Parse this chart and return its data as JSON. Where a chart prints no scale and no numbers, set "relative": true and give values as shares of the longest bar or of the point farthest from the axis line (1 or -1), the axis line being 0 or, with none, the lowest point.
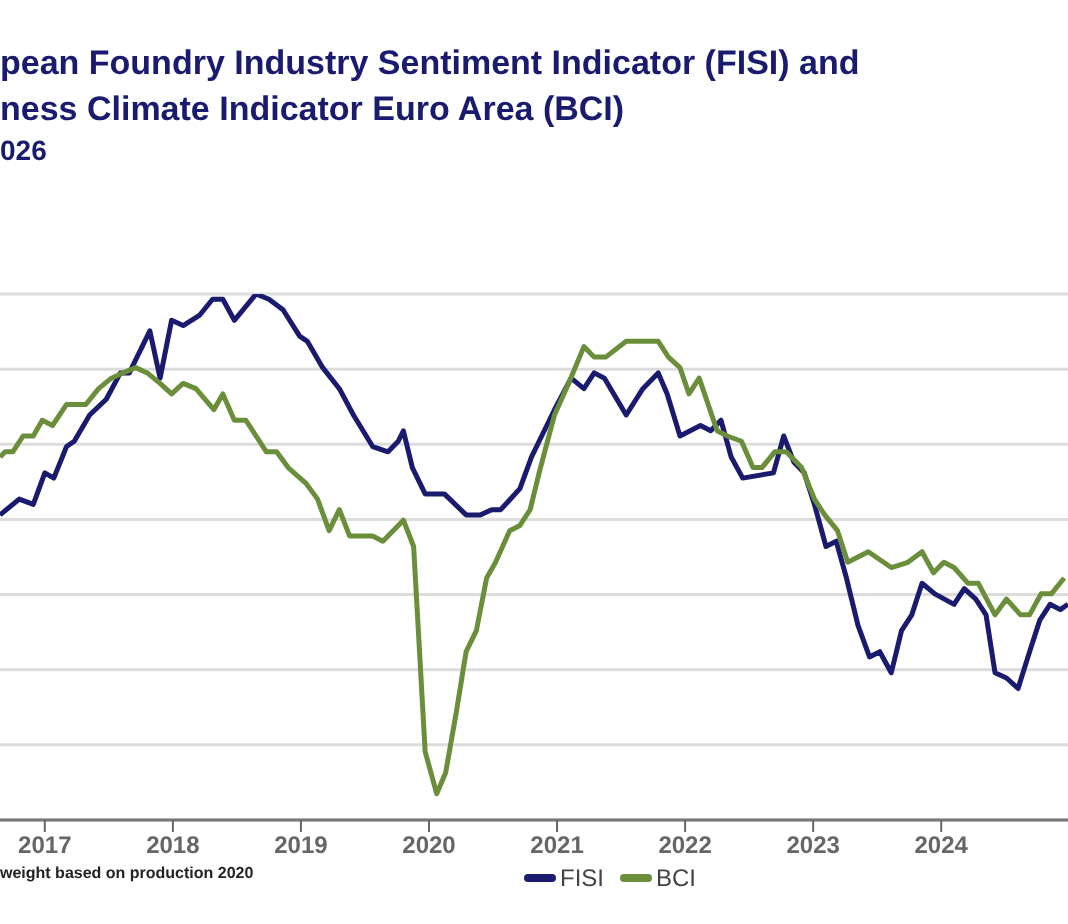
{
  "chart_data": {
    "type": "line",
    "title": "pean Foundry Industry Sentiment Indicator (FISI) and\nness Climate Indicator Euro Area (BCI)",
    "subtitle": "026",
    "annotations": [
      "weight based on production 2020"
    ],
    "relative": true,
    "xlim": [
      2016.65,
      2024.99
    ],
    "xticks": [
      2017,
      2018,
      2019,
      2020,
      2021,
      2022,
      2023,
      2024
    ],
    "grid": "y",
    "legend": "bottom",
    "marker": "none",
    "line_style": "solid",
    "series": [
      {
        "name": "FISI",
        "color": "#1a1a6e",
        "x": [
          2016.65,
          2016.8,
          2016.91,
          2017.0,
          2017.07,
          2017.17,
          2017.23,
          2017.35,
          2017.48,
          2017.59,
          2017.66,
          2017.82,
          2017.9,
          2017.99,
          2018.08,
          2018.21,
          2018.31,
          2018.39,
          2018.48,
          2018.65,
          2018.75,
          2018.86,
          2018.99,
          2019.05,
          2019.17,
          2019.3,
          2019.41,
          2019.56,
          2019.68,
          2019.76,
          2019.8,
          2019.87,
          2019.97,
          2020.12,
          2020.29,
          2020.4,
          2020.49,
          2020.56,
          2020.71,
          2020.8,
          2020.86,
          2020.98,
          2021.11,
          2021.21,
          2021.29,
          2021.37,
          2021.54,
          2021.67,
          2021.79,
          2021.86,
          2021.96,
          2022.12,
          2022.2,
          2022.28,
          2022.36,
          2022.45,
          2022.69,
          2022.77,
          2022.85,
          2022.93,
          2023.01,
          2023.1,
          2023.18,
          2023.26,
          2023.35,
          2023.44,
          2023.52,
          2023.61,
          2023.69,
          2023.77,
          2023.85,
          2023.95,
          2024.1,
          2024.18,
          2024.27,
          2024.35,
          2024.42,
          2024.51,
          2024.6,
          2024.69,
          2024.77,
          2024.85,
          2024.93,
          2024.99
        ],
        "values": [
          0.58,
          0.61,
          0.6,
          0.66,
          0.65,
          0.71,
          0.72,
          0.77,
          0.8,
          0.85,
          0.85,
          0.93,
          0.84,
          0.95,
          0.94,
          0.96,
          0.99,
          0.99,
          0.95,
          1,
          0.99,
          0.97,
          0.92,
          0.91,
          0.86,
          0.82,
          0.77,
          0.71,
          0.7,
          0.72,
          0.74,
          0.67,
          0.62,
          0.62,
          0.58,
          0.58,
          0.59,
          0.59,
          0.63,
          0.69,
          0.72,
          0.78,
          0.84,
          0.82,
          0.85,
          0.84,
          0.77,
          0.82,
          0.85,
          0.81,
          0.73,
          0.75,
          0.74,
          0.76,
          0.69,
          0.65,
          0.66,
          0.73,
          0.68,
          0.66,
          0.6,
          0.52,
          0.53,
          0.46,
          0.37,
          0.31,
          0.32,
          0.28,
          0.36,
          0.39,
          0.45,
          0.43,
          0.41,
          0.44,
          0.42,
          0.39,
          0.28,
          0.27,
          0.25,
          0.32,
          0.38,
          0.41,
          0.4,
          0.41
        ]
      },
      {
        "name": "BCI",
        "color": "#6b8e3a",
        "x": [
          2016.65,
          2016.69,
          2016.75,
          2016.83,
          2016.91,
          2016.98,
          2017.06,
          2017.17,
          2017.24,
          2017.32,
          2017.42,
          2017.52,
          2017.61,
          2017.71,
          2017.8,
          2017.9,
          2017.99,
          2018.08,
          2018.18,
          2018.32,
          2018.39,
          2018.48,
          2018.57,
          2018.73,
          2018.81,
          2018.9,
          2019.04,
          2019.13,
          2019.22,
          2019.3,
          2019.38,
          2019.48,
          2019.56,
          2019.64,
          2019.72,
          2019.8,
          2019.88,
          2019.97,
          2020.06,
          2020.13,
          2020.21,
          2020.29,
          2020.37,
          2020.45,
          2020.52,
          2020.63,
          2020.71,
          2020.79,
          2020.86,
          2020.98,
          2021.09,
          2021.21,
          2021.29,
          2021.38,
          2021.54,
          2021.63,
          2021.71,
          2021.79,
          2021.87,
          2021.96,
          2022.03,
          2022.11,
          2022.25,
          2022.33,
          2022.44,
          2022.53,
          2022.6,
          2022.7,
          2022.79,
          2022.91,
          2023.01,
          2023.09,
          2023.19,
          2023.27,
          2023.43,
          2023.61,
          2023.74,
          2023.85,
          2023.94,
          2024.02,
          2024.1,
          2024.21,
          2024.29,
          2024.42,
          2024.51,
          2024.62,
          2024.69,
          2024.78,
          2024.86,
          2024.96
        ],
        "values": [
          0.69,
          0.7,
          0.7,
          0.73,
          0.73,
          0.76,
          0.75,
          0.79,
          0.79,
          0.79,
          0.82,
          0.84,
          0.85,
          0.86,
          0.85,
          0.83,
          0.81,
          0.83,
          0.82,
          0.78,
          0.81,
          0.76,
          0.76,
          0.7,
          0.7,
          0.67,
          0.64,
          0.61,
          0.55,
          0.59,
          0.54,
          0.54,
          0.54,
          0.53,
          0.55,
          0.57,
          0.52,
          0.13,
          0.05,
          0.09,
          0.2,
          0.32,
          0.36,
          0.46,
          0.49,
          0.55,
          0.56,
          0.59,
          0.66,
          0.77,
          0.83,
          0.9,
          0.88,
          0.88,
          0.91,
          0.91,
          0.91,
          0.91,
          0.88,
          0.86,
          0.81,
          0.84,
          0.74,
          0.73,
          0.72,
          0.67,
          0.67,
          0.7,
          0.7,
          0.67,
          0.61,
          0.58,
          0.55,
          0.49,
          0.51,
          0.48,
          0.49,
          0.51,
          0.47,
          0.49,
          0.48,
          0.45,
          0.45,
          0.39,
          0.42,
          0.39,
          0.39,
          0.43,
          0.43,
          0.46
        ]
      }
    ]
  }
}
